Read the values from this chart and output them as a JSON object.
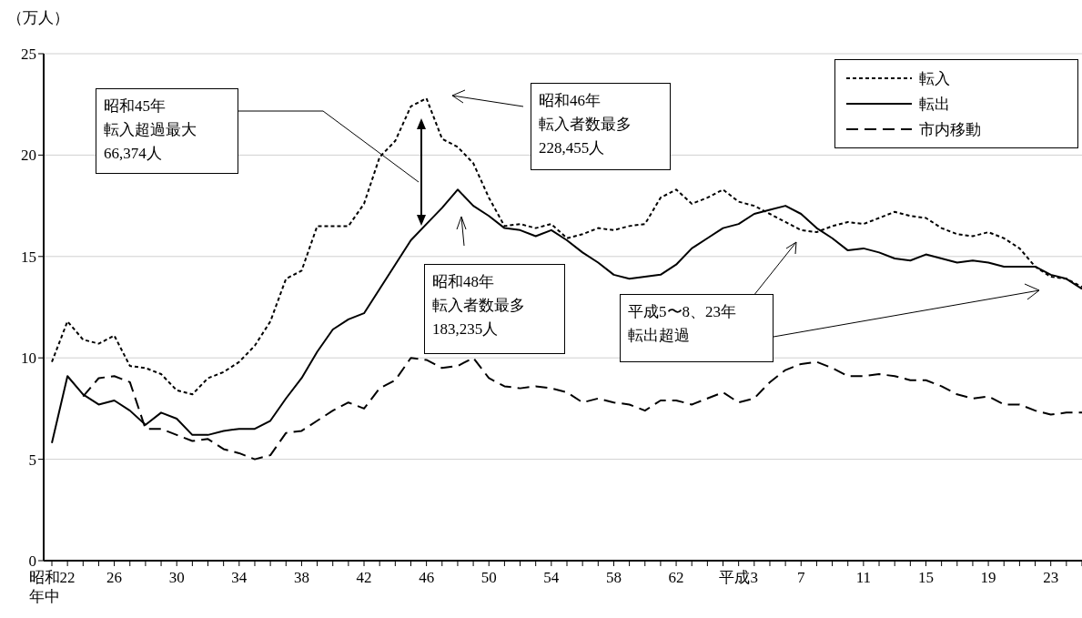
{
  "chart_data": {
    "type": "line",
    "ylabel": "（万人）",
    "categories": [
      "昭和22\n年中",
      null,
      null,
      null,
      "26",
      null,
      null,
      null,
      "30",
      null,
      null,
      null,
      "34",
      null,
      null,
      null,
      "38",
      null,
      null,
      null,
      "42",
      null,
      null,
      null,
      "46",
      null,
      null,
      null,
      "50",
      null,
      null,
      null,
      "54",
      null,
      null,
      null,
      "58",
      null,
      null,
      null,
      "62",
      null,
      null,
      null,
      "平成3",
      null,
      null,
      null,
      "7",
      null,
      null,
      null,
      "11",
      null,
      null,
      null,
      "15",
      null,
      null,
      null,
      "19",
      null,
      null,
      null,
      "23",
      null,
      null
    ],
    "series": [
      {
        "name": "転入",
        "color": "#000000",
        "line_style": "dotted",
        "values": [
          9.8,
          11.8,
          10.9,
          10.7,
          11.1,
          9.6,
          9.5,
          9.2,
          8.4,
          8.2,
          9.0,
          9.3,
          9.8,
          10.6,
          11.8,
          13.9,
          14.3,
          16.5,
          16.5,
          16.5,
          17.6,
          19.9,
          20.7,
          22.4,
          22.8,
          20.8,
          20.4,
          19.6,
          17.9,
          16.5,
          16.6,
          16.4,
          16.6,
          15.9,
          16.1,
          16.4,
          16.3,
          16.5,
          16.6,
          17.9,
          18.3,
          17.6,
          17.9,
          18.3,
          17.7,
          17.5,
          17.1,
          16.7,
          16.3,
          16.2,
          16.5,
          16.7,
          16.6,
          16.9,
          17.2,
          17.0,
          16.9,
          16.4,
          16.1,
          16.0,
          16.2,
          15.9,
          15.4,
          14.5,
          14.0,
          13.9,
          13.5
        ]
      },
      {
        "name": "転出",
        "color": "#000000",
        "line_style": "solid",
        "values": [
          5.8,
          9.1,
          8.2,
          7.7,
          7.9,
          7.4,
          6.7,
          7.3,
          7.0,
          6.2,
          6.2,
          6.4,
          6.5,
          6.5,
          6.9,
          8.0,
          9.0,
          10.3,
          11.4,
          11.9,
          12.2,
          13.4,
          14.6,
          15.8,
          16.6,
          17.4,
          18.3,
          17.5,
          17.0,
          16.4,
          16.3,
          16.0,
          16.3,
          15.8,
          15.2,
          14.7,
          14.1,
          13.9,
          14.0,
          14.1,
          14.6,
          15.4,
          15.9,
          16.4,
          16.6,
          17.1,
          17.3,
          17.5,
          17.1,
          16.4,
          15.9,
          15.3,
          15.4,
          15.2,
          14.9,
          14.8,
          15.1,
          14.9,
          14.7,
          14.8,
          14.7,
          14.5,
          14.5,
          14.5,
          14.1,
          13.9,
          13.4
        ]
      },
      {
        "name": "市内移動",
        "color": "#000000",
        "line_style": "dashed",
        "values": [
          null,
          null,
          8.1,
          9.0,
          9.1,
          8.8,
          6.5,
          6.5,
          6.2,
          5.9,
          6.0,
          5.5,
          5.3,
          5.0,
          5.2,
          6.3,
          6.4,
          6.9,
          7.4,
          7.8,
          7.5,
          8.5,
          8.9,
          10.0,
          9.9,
          9.5,
          9.6,
          10.0,
          9.0,
          8.6,
          8.5,
          8.6,
          8.5,
          8.3,
          7.8,
          8.0,
          7.8,
          7.7,
          7.4,
          7.9,
          7.9,
          7.7,
          8.0,
          8.3,
          7.8,
          8.0,
          8.8,
          9.4,
          9.7,
          9.8,
          9.5,
          9.1,
          9.1,
          9.2,
          9.1,
          8.9,
          8.9,
          8.6,
          8.2,
          8.0,
          8.1,
          7.7,
          7.7,
          7.4,
          7.2,
          7.3,
          7.3
        ]
      }
    ],
    "ylim": [
      0,
      25
    ],
    "yticks": [
      0,
      5,
      10,
      15,
      20,
      25
    ],
    "grid": "y",
    "legend": "top right",
    "marker": "none",
    "annotations": [
      "昭和45年転入超過最大66,374人",
      "昭和46年転入者数最多228,455人",
      "昭和48年転入者数最多183,235人",
      "平成5〜8、23年転出超過"
    ]
  }
}
